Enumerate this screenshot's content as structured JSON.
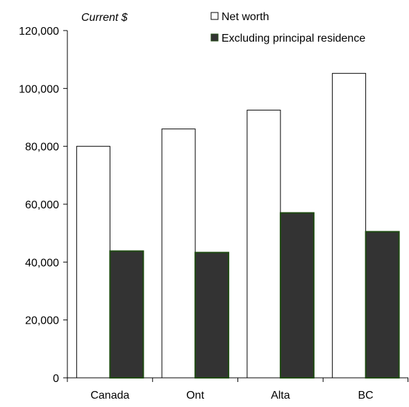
{
  "chart_data": {
    "type": "bar",
    "units_label": "Current $",
    "categories": [
      "Canada",
      "Ont",
      "Alta",
      "BC"
    ],
    "series": [
      {
        "name": "Net worth",
        "values": [
          80000,
          86000,
          92500,
          105200
        ],
        "fill": "#ffffff",
        "stroke": "#000000"
      },
      {
        "name": "Excluding principal residence",
        "values": [
          43800,
          43300,
          57000,
          50500
        ],
        "fill": "#333333",
        "stroke": "#1f4a12"
      }
    ],
    "ylim": [
      0,
      120000
    ],
    "yticks": [
      0,
      20000,
      40000,
      60000,
      80000,
      100000,
      120000
    ],
    "ytick_labels": [
      "0",
      "20,000",
      "40,000",
      "60,000",
      "80,000",
      "100,000",
      "120,000"
    ],
    "grid": false,
    "legend_position": "top-right"
  }
}
